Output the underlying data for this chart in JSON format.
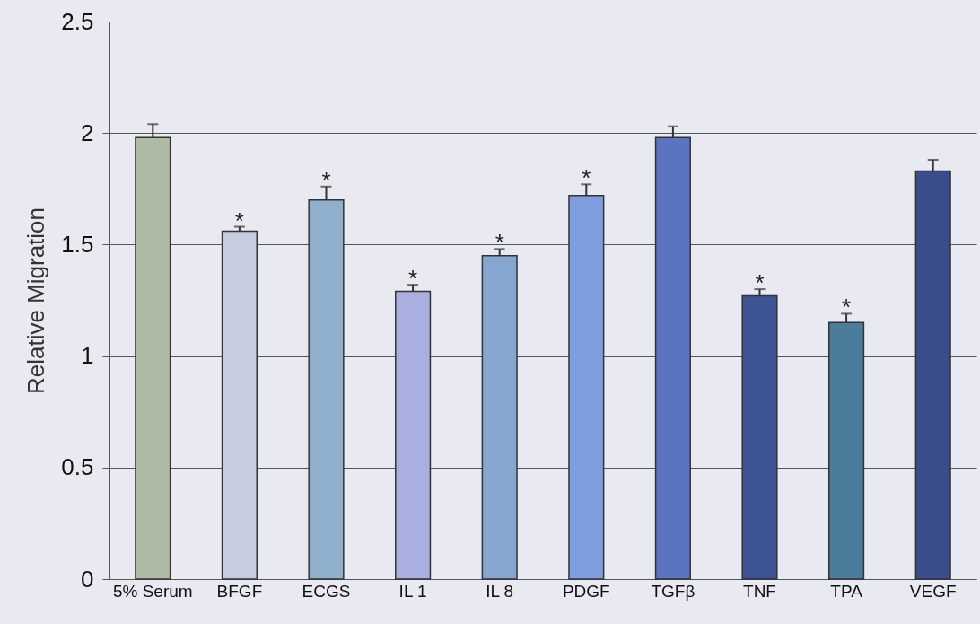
{
  "chart_data": {
    "type": "bar",
    "ylabel": "Relative Migration",
    "categories": [
      "5% Serum",
      "BFGF",
      "ECGS",
      "IL 1",
      "IL 8",
      "PDGF",
      "TGFβ",
      "TNF",
      "TPA",
      "VEGF"
    ],
    "values": [
      1.98,
      1.56,
      1.7,
      1.29,
      1.45,
      1.72,
      1.98,
      1.27,
      1.15,
      1.83
    ],
    "errors": [
      0.06,
      0.02,
      0.06,
      0.03,
      0.03,
      0.05,
      0.05,
      0.03,
      0.04,
      0.05
    ],
    "colors": [
      "#aebaa4",
      "#c6cde0",
      "#8fb0cc",
      "#a9afe0",
      "#86a6d0",
      "#7e9ee0",
      "#5a74c0",
      "#3c5494",
      "#4a7c9c",
      "#3b4c8c"
    ],
    "ylim": [
      0,
      2.5
    ],
    "yticks": [
      {
        "value": 0,
        "label": "0"
      },
      0.5,
      {
        "value": 1,
        "label": "1"
      },
      1.5,
      {
        "value": 2,
        "label": "2"
      },
      2.5
    ],
    "grid": "y",
    "annotations": [
      {
        "text": "*",
        "x": "BFGF",
        "y": 1.58
      },
      {
        "text": "*",
        "x": "ECGS",
        "y": 1.76
      },
      {
        "text": "*",
        "x": "IL 1",
        "y": 1.32
      },
      {
        "text": "*",
        "x": "IL 8",
        "y": 1.48
      },
      {
        "text": "*",
        "x": "PDGF",
        "y": 1.77
      },
      {
        "text": "*",
        "x": "TNF",
        "y": 1.3
      },
      {
        "text": "*",
        "x": "TPA",
        "y": 1.19
      }
    ]
  }
}
